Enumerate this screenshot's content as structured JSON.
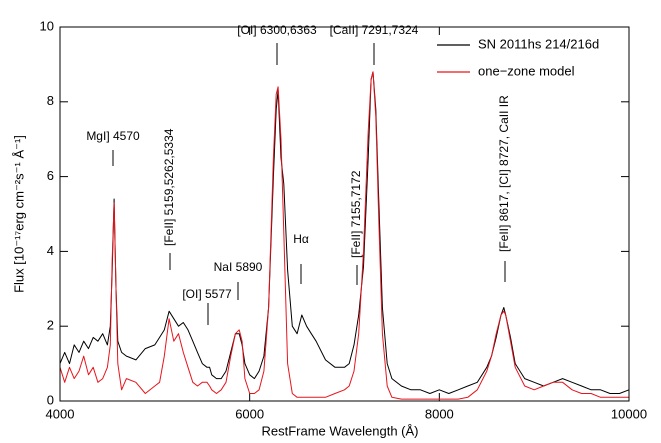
{
  "chart_data": {
    "type": "line",
    "x_label": "RestFrame Wavelength (Å)",
    "y_label": "Flux [10⁻¹⁷erg cm⁻²s⁻¹ Å⁻¹]",
    "xlim": [
      4000,
      10000
    ],
    "ylim": [
      0,
      10
    ],
    "xticks": [
      4000,
      6000,
      8000,
      10000
    ],
    "yticks": [
      0,
      2,
      4,
      6,
      8,
      10
    ],
    "legend": "upper right",
    "x": [
      4000,
      4050,
      4100,
      4150,
      4200,
      4250,
      4300,
      4350,
      4400,
      4450,
      4500,
      4530,
      4550,
      4570,
      4590,
      4610,
      4650,
      4700,
      4800,
      4900,
      5000,
      5050,
      5100,
      5150,
      5200,
      5250,
      5300,
      5350,
      5400,
      5450,
      5500,
      5550,
      5577,
      5600,
      5650,
      5700,
      5750,
      5800,
      5850,
      5890,
      5920,
      5950,
      6000,
      6050,
      6100,
      6150,
      6200,
      6250,
      6280,
      6300,
      6330,
      6360,
      6400,
      6450,
      6500,
      6550,
      6600,
      6650,
      6700,
      6800,
      6900,
      7000,
      7050,
      7100,
      7150,
      7200,
      7250,
      7280,
      7300,
      7330,
      7360,
      7400,
      7450,
      7500,
      7600,
      7700,
      7800,
      7900,
      8000,
      8100,
      8200,
      8300,
      8400,
      8500,
      8550,
      8600,
      8650,
      8680,
      8700,
      8750,
      8800,
      8900,
      9000,
      9100,
      9200,
      9300,
      9400,
      9500,
      9600,
      9700,
      9800,
      9900,
      10000
    ],
    "series": [
      {
        "name": "SN 2011hs 214/216d",
        "color": "#000000",
        "values": [
          1.0,
          1.3,
          1.0,
          1.5,
          1.3,
          1.6,
          1.4,
          1.7,
          1.6,
          1.8,
          1.5,
          2.0,
          3.5,
          5.4,
          3.0,
          1.6,
          1.3,
          1.2,
          1.1,
          1.4,
          1.5,
          1.7,
          1.9,
          2.4,
          2.2,
          2.0,
          2.1,
          1.9,
          1.6,
          1.3,
          1.0,
          0.9,
          0.9,
          0.7,
          0.6,
          0.6,
          0.8,
          1.3,
          1.8,
          1.8,
          1.5,
          1.0,
          0.7,
          0.6,
          0.8,
          1.2,
          2.5,
          6.0,
          7.8,
          8.3,
          6.5,
          5.8,
          3.5,
          2.0,
          1.8,
          2.3,
          2.0,
          1.8,
          1.6,
          1.1,
          0.9,
          0.9,
          1.0,
          1.5,
          2.3,
          3.6,
          6.5,
          8.6,
          8.8,
          7.8,
          5.5,
          2.5,
          1.0,
          0.6,
          0.4,
          0.3,
          0.3,
          0.2,
          0.3,
          0.2,
          0.3,
          0.4,
          0.5,
          0.9,
          1.2,
          1.7,
          2.3,
          2.5,
          2.3,
          1.7,
          1.0,
          0.6,
          0.5,
          0.4,
          0.5,
          0.6,
          0.5,
          0.4,
          0.3,
          0.3,
          0.2,
          0.2,
          0.3
        ]
      },
      {
        "name": "one−zone model",
        "color": "#e8141c",
        "values": [
          0.9,
          0.5,
          0.9,
          0.6,
          0.8,
          1.2,
          0.7,
          0.9,
          0.5,
          0.6,
          0.9,
          1.5,
          3.8,
          5.3,
          3.0,
          1.0,
          0.3,
          0.6,
          0.5,
          0.2,
          0.4,
          0.5,
          1.2,
          2.2,
          1.6,
          1.8,
          1.3,
          0.9,
          0.5,
          0.4,
          0.5,
          0.5,
          0.4,
          0.3,
          0.2,
          0.3,
          0.5,
          1.2,
          1.8,
          1.9,
          1.6,
          0.6,
          0.2,
          0.2,
          0.3,
          0.8,
          2.5,
          6.5,
          8.2,
          8.4,
          7.0,
          4.5,
          1.0,
          0.2,
          0.1,
          0.1,
          0.1,
          0.1,
          0.1,
          0.1,
          0.2,
          0.3,
          0.4,
          0.8,
          1.8,
          4.0,
          7.2,
          8.6,
          8.8,
          7.6,
          5.0,
          1.8,
          0.4,
          0.1,
          0.05,
          0.05,
          0.05,
          0.05,
          0.05,
          0.05,
          0.05,
          0.1,
          0.3,
          0.8,
          1.2,
          1.8,
          2.3,
          2.4,
          2.3,
          1.6,
          0.9,
          0.4,
          0.3,
          0.4,
          0.5,
          0.5,
          0.3,
          0.2,
          0.2,
          0.1,
          0.1,
          0.1,
          0.1
        ]
      }
    ],
    "annotations": [
      "MgI] 4570",
      "[FeII] 5159,5262,5334",
      "[OI] 5577",
      "NaI 5890",
      "[OI] 6300,6363",
      "[CaII] 7291,7324",
      "Hα",
      "[FeII] 7155,7172",
      "[FeII] 8617, [CI] 8727, CaII IR"
    ]
  }
}
